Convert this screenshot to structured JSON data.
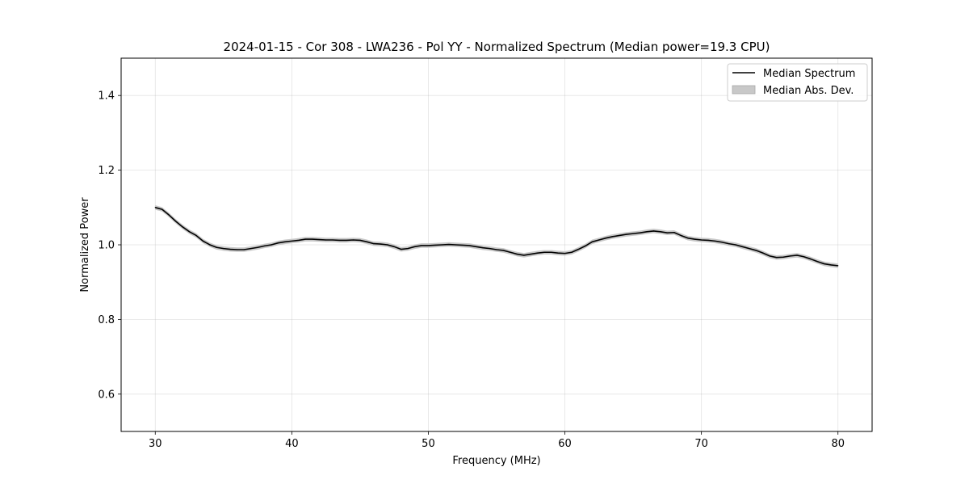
{
  "chart_data": {
    "type": "line",
    "title": "2024-01-15 - Cor 308 - LWA236 - Pol YY - Normalized Spectrum (Median power=19.3 CPU)",
    "xlabel": "Frequency (MHz)",
    "ylabel": "Normalized Power",
    "xlim": [
      27.5,
      82.5
    ],
    "ylim": [
      0.5,
      1.5
    ],
    "xticks": [
      30,
      40,
      50,
      60,
      70,
      80
    ],
    "yticks": [
      0.6,
      0.8,
      1.0,
      1.2,
      1.4
    ],
    "xtick_labels": [
      "30",
      "40",
      "50",
      "60",
      "70",
      "80"
    ],
    "ytick_labels": [
      "0.6",
      "0.8",
      "1.0",
      "1.2",
      "1.4"
    ],
    "grid": true,
    "legend_position": "top-right",
    "series": [
      {
        "name": "Median Spectrum",
        "color": "#000000",
        "mad": 0.006,
        "x": [
          30,
          30.5,
          31,
          31.5,
          32,
          32.5,
          33,
          33.5,
          34,
          34.5,
          35,
          35.5,
          36,
          36.5,
          37,
          37.5,
          38,
          38.5,
          39,
          39.5,
          40,
          40.5,
          41,
          41.5,
          42,
          42.5,
          43,
          43.5,
          44,
          44.5,
          45,
          45.5,
          46,
          46.5,
          47,
          47.5,
          48,
          48.5,
          49,
          49.5,
          50,
          50.5,
          51,
          51.5,
          52,
          52.5,
          53,
          53.5,
          54,
          54.5,
          55,
          55.5,
          56,
          56.5,
          57,
          57.5,
          58,
          58.5,
          59,
          59.5,
          60,
          60.5,
          61,
          61.5,
          62,
          62.5,
          63,
          63.5,
          64,
          64.5,
          65,
          65.5,
          66,
          66.5,
          67,
          67.5,
          68,
          68.5,
          69,
          69.5,
          70,
          70.5,
          71,
          71.5,
          72,
          72.5,
          73,
          73.5,
          74,
          74.5,
          75,
          75.5,
          76,
          76.5,
          77,
          77.5,
          78,
          78.5,
          79,
          79.5,
          80
        ],
        "y": [
          1.1,
          1.095,
          1.08,
          1.063,
          1.048,
          1.035,
          1.025,
          1.01,
          1.0,
          0.993,
          0.99,
          0.988,
          0.987,
          0.987,
          0.99,
          0.993,
          0.997,
          1.0,
          1.005,
          1.008,
          1.01,
          1.012,
          1.015,
          1.015,
          1.014,
          1.013,
          1.013,
          1.012,
          1.012,
          1.013,
          1.012,
          1.008,
          1.003,
          1.002,
          1.0,
          0.995,
          0.988,
          0.99,
          0.995,
          0.998,
          0.998,
          0.999,
          1.0,
          1.001,
          1.0,
          0.999,
          0.998,
          0.995,
          0.992,
          0.99,
          0.987,
          0.985,
          0.98,
          0.975,
          0.972,
          0.975,
          0.978,
          0.98,
          0.98,
          0.978,
          0.977,
          0.98,
          0.988,
          0.997,
          1.008,
          1.013,
          1.018,
          1.022,
          1.025,
          1.028,
          1.03,
          1.032,
          1.035,
          1.037,
          1.035,
          1.032,
          1.033,
          1.025,
          1.018,
          1.015,
          1.013,
          1.012,
          1.01,
          1.007,
          1.003,
          1.0,
          0.995,
          0.99,
          0.985,
          0.978,
          0.97,
          0.966,
          0.967,
          0.97,
          0.972,
          0.968,
          0.962,
          0.955,
          0.949,
          0.946,
          0.944
        ]
      },
      {
        "name": "Median Abs. Dev.",
        "color": "#c8c8c8"
      }
    ]
  }
}
